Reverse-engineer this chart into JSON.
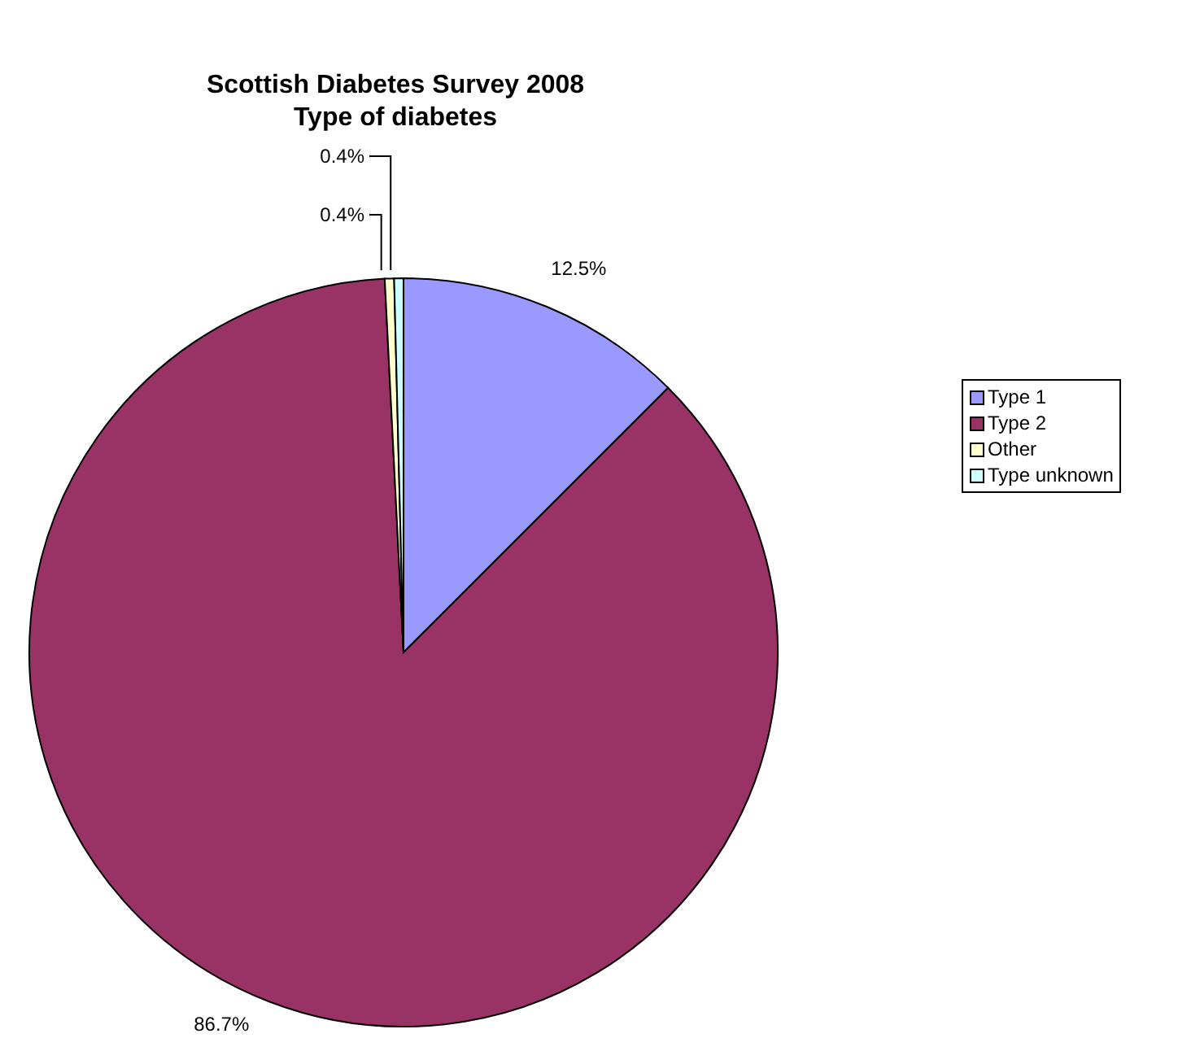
{
  "chart_data": {
    "type": "pie",
    "title": "Scottish Diabetes Survey 2008",
    "subtitle": "Type of diabetes",
    "categories": [
      "Type 1",
      "Type 2",
      "Other",
      "Type unknown"
    ],
    "values": [
      12.5,
      86.7,
      0.4,
      0.4
    ],
    "colors": [
      "#9999ff",
      "#993366",
      "#ffffcc",
      "#ccffff"
    ],
    "value_labels": [
      "12.5%",
      "86.7%",
      "0.4%",
      "0.4%"
    ],
    "legend": "right"
  }
}
